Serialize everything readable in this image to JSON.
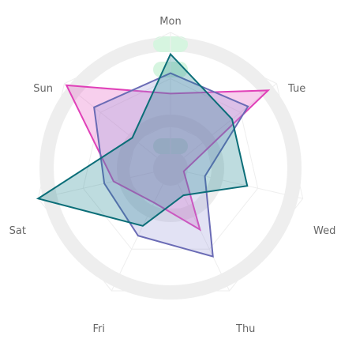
{
  "chart_data": {
    "type": "radar",
    "categories": [
      "Mon",
      "Tue",
      "Wed",
      "Thu",
      "Fri",
      "Sat",
      "Sun"
    ],
    "rmax": 100,
    "series": [
      {
        "color": "#e040b8",
        "fill": "rgba(224,64,184,0.25)",
        "values": [
          55,
          92,
          10,
          50,
          28,
          43,
          98
        ]
      },
      {
        "color": "#6a6bb5",
        "fill": "rgba(150,150,215,0.28)",
        "values": [
          70,
          73,
          26,
          72,
          55,
          50,
          72
        ]
      },
      {
        "color": "#0b6e78",
        "fill": "rgba(20,130,140,0.28)",
        "values": [
          84,
          58,
          58,
          22,
          47,
          100,
          36
        ]
      }
    ],
    "colors": {
      "background_ring": "#eeeeee",
      "grid_line": "#eeeeee",
      "highlight_bars": "#d6f5e0"
    }
  }
}
